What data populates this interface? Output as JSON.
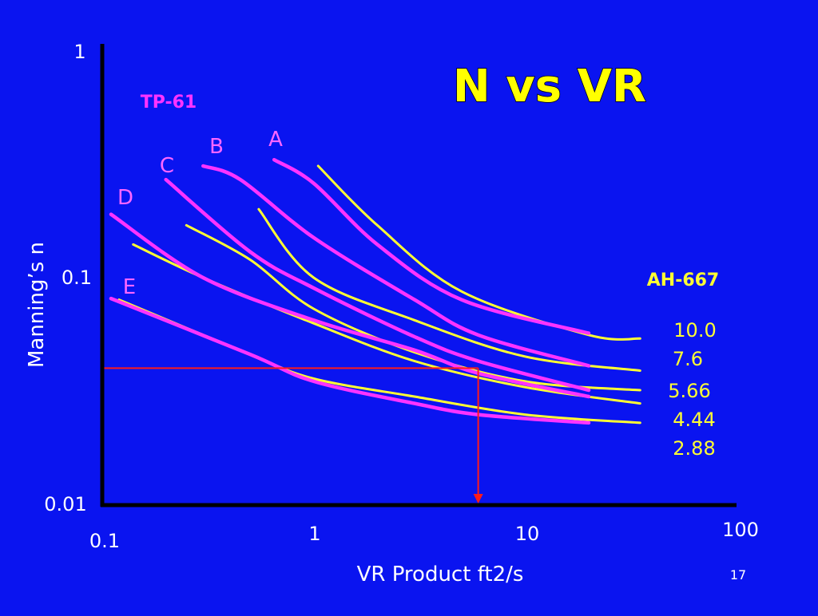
{
  "slide": {
    "title": "N vs VR",
    "page_number": "17"
  },
  "chart_data": {
    "type": "line",
    "title": "N vs VR",
    "xlabel": "VR Product ft2/s",
    "ylabel": "Manning’s n",
    "x_scale": "log",
    "y_scale": "log",
    "xlim": [
      0.1,
      100
    ],
    "ylim": [
      0.01,
      1
    ],
    "x_ticks": [
      "0.1",
      "1",
      "10",
      "100"
    ],
    "y_ticks": [
      "0.01",
      "0.1",
      "1"
    ],
    "grid": false,
    "colors": {
      "background": "#0a14f0",
      "tp61": "#ff33ff",
      "ah667": "#ffff33",
      "guide": "#ff1a1a",
      "axis": "#000000",
      "tick_text": "#ffffff"
    },
    "annotations": {
      "tp61_label": "TP-61",
      "ah667_label": "AH-667"
    },
    "reference_line": {
      "x": 6,
      "y": 0.04
    },
    "tp61_series": [
      {
        "name": "A",
        "x": [
          0.65,
          1,
          2,
          5,
          20
        ],
        "y": [
          0.33,
          0.26,
          0.14,
          0.08,
          0.057
        ]
      },
      {
        "name": "B",
        "x": [
          0.3,
          0.45,
          1,
          3,
          6,
          20
        ],
        "y": [
          0.31,
          0.27,
          0.15,
          0.08,
          0.056,
          0.041
        ]
      },
      {
        "name": "C",
        "x": [
          0.2,
          0.5,
          1,
          3,
          6,
          20
        ],
        "y": [
          0.27,
          0.13,
          0.09,
          0.055,
          0.043,
          0.032
        ]
      },
      {
        "name": "D",
        "x": [
          0.11,
          0.3,
          1,
          3,
          6,
          20
        ],
        "y": [
          0.19,
          0.1,
          0.065,
          0.048,
          0.038,
          0.03
        ]
      },
      {
        "name": "E",
        "x": [
          0.11,
          0.5,
          1,
          3,
          6,
          20
        ],
        "y": [
          0.081,
          0.046,
          0.035,
          0.028,
          0.025,
          0.023
        ]
      }
    ],
    "ah667_series": [
      {
        "name": "10.0",
        "x": [
          1.05,
          2,
          5,
          20,
          35
        ],
        "y": [
          0.31,
          0.17,
          0.087,
          0.056,
          0.054
        ]
      },
      {
        "name": "7.6",
        "x": [
          0.55,
          1,
          3,
          10,
          35
        ],
        "y": [
          0.2,
          0.1,
          0.065,
          0.045,
          0.039
        ]
      },
      {
        "name": "5.66",
        "x": [
          0.25,
          0.5,
          1,
          3,
          10,
          35
        ],
        "y": [
          0.17,
          0.12,
          0.073,
          0.047,
          0.035,
          0.032
        ]
      },
      {
        "name": "4.44",
        "x": [
          0.14,
          0.3,
          1,
          3,
          10,
          35
        ],
        "y": [
          0.14,
          0.1,
          0.063,
          0.043,
          0.033,
          0.028
        ]
      },
      {
        "name": "2.88",
        "x": [
          0.12,
          0.5,
          1,
          3,
          10,
          35
        ],
        "y": [
          0.08,
          0.046,
          0.036,
          0.03,
          0.025,
          0.023
        ]
      }
    ]
  }
}
